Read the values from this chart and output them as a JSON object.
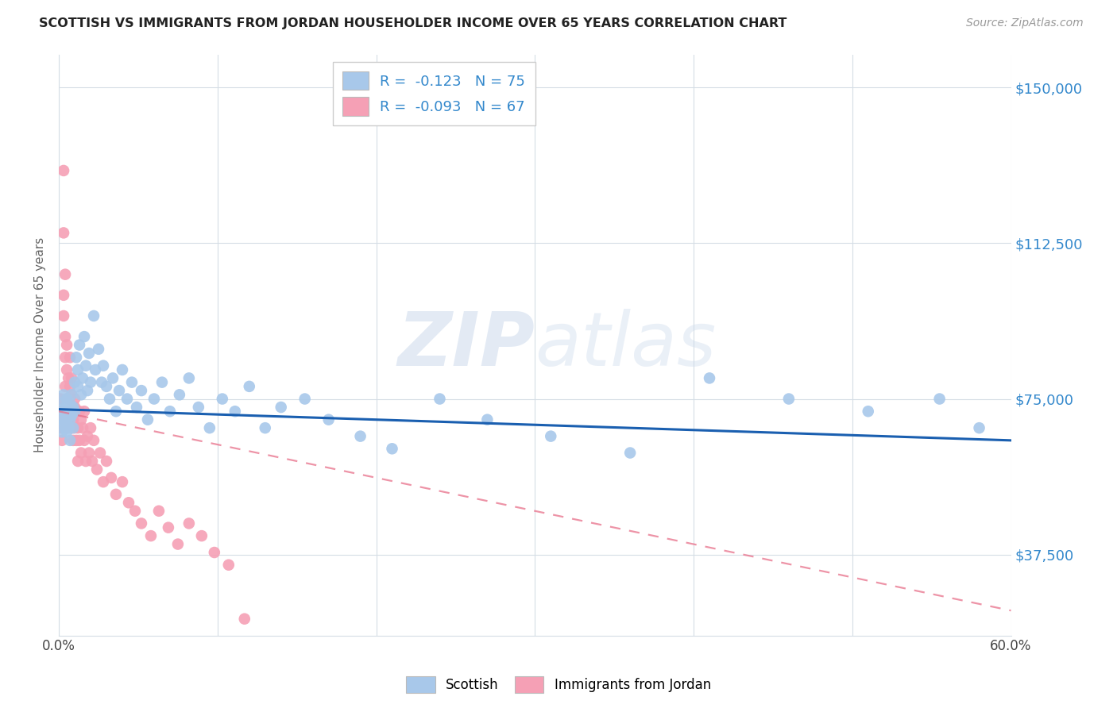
{
  "title": "SCOTTISH VS IMMIGRANTS FROM JORDAN HOUSEHOLDER INCOME OVER 65 YEARS CORRELATION CHART",
  "source": "Source: ZipAtlas.com",
  "ylabel": "Householder Income Over 65 years",
  "ytick_labels": [
    "$37,500",
    "$75,000",
    "$112,500",
    "$150,000"
  ],
  "ytick_values": [
    37500,
    75000,
    112500,
    150000
  ],
  "ymin": 18000,
  "ymax": 158000,
  "xmin": 0.0,
  "xmax": 0.6,
  "legend_blue_r": "-0.123",
  "legend_blue_n": "75",
  "legend_pink_r": "-0.093",
  "legend_pink_n": "67",
  "blue_color": "#a8c8ea",
  "pink_color": "#f5a0b5",
  "blue_line_color": "#1a5fb0",
  "pink_line_color": "#e8708a",
  "grid_color": "#d5dde5",
  "watermark_zip": "ZIP",
  "watermark_atlas": "atlas",
  "scottish_x": [
    0.001,
    0.002,
    0.002,
    0.003,
    0.003,
    0.003,
    0.004,
    0.004,
    0.004,
    0.005,
    0.005,
    0.005,
    0.006,
    0.006,
    0.007,
    0.007,
    0.007,
    0.008,
    0.008,
    0.009,
    0.009,
    0.01,
    0.01,
    0.011,
    0.012,
    0.012,
    0.013,
    0.014,
    0.015,
    0.016,
    0.017,
    0.018,
    0.019,
    0.02,
    0.022,
    0.023,
    0.025,
    0.027,
    0.028,
    0.03,
    0.032,
    0.034,
    0.036,
    0.038,
    0.04,
    0.043,
    0.046,
    0.049,
    0.052,
    0.056,
    0.06,
    0.065,
    0.07,
    0.076,
    0.082,
    0.088,
    0.095,
    0.103,
    0.111,
    0.12,
    0.13,
    0.14,
    0.155,
    0.17,
    0.19,
    0.21,
    0.24,
    0.27,
    0.31,
    0.36,
    0.41,
    0.46,
    0.51,
    0.555,
    0.58
  ],
  "scottish_y": [
    70000,
    67000,
    74000,
    69000,
    72000,
    76000,
    68000,
    73000,
    71000,
    70000,
    75000,
    67000,
    72000,
    68000,
    74000,
    70000,
    65000,
    76000,
    71000,
    73000,
    68000,
    79000,
    72000,
    85000,
    78000,
    82000,
    88000,
    76000,
    80000,
    90000,
    83000,
    77000,
    86000,
    79000,
    95000,
    82000,
    87000,
    79000,
    83000,
    78000,
    75000,
    80000,
    72000,
    77000,
    82000,
    75000,
    79000,
    73000,
    77000,
    70000,
    75000,
    79000,
    72000,
    76000,
    80000,
    73000,
    68000,
    75000,
    72000,
    78000,
    68000,
    73000,
    75000,
    70000,
    66000,
    63000,
    75000,
    70000,
    66000,
    62000,
    80000,
    75000,
    72000,
    75000,
    68000
  ],
  "jordan_x": [
    0.001,
    0.001,
    0.002,
    0.002,
    0.002,
    0.003,
    0.003,
    0.003,
    0.003,
    0.004,
    0.004,
    0.004,
    0.004,
    0.005,
    0.005,
    0.005,
    0.005,
    0.006,
    0.006,
    0.006,
    0.007,
    0.007,
    0.007,
    0.008,
    0.008,
    0.008,
    0.009,
    0.009,
    0.01,
    0.01,
    0.01,
    0.011,
    0.011,
    0.012,
    0.012,
    0.013,
    0.013,
    0.014,
    0.014,
    0.015,
    0.016,
    0.016,
    0.017,
    0.018,
    0.019,
    0.02,
    0.021,
    0.022,
    0.024,
    0.026,
    0.028,
    0.03,
    0.033,
    0.036,
    0.04,
    0.044,
    0.048,
    0.052,
    0.058,
    0.063,
    0.069,
    0.075,
    0.082,
    0.09,
    0.098,
    0.107,
    0.117
  ],
  "jordan_y": [
    70000,
    75000,
    68000,
    72000,
    65000,
    115000,
    130000,
    100000,
    95000,
    85000,
    90000,
    78000,
    105000,
    68000,
    72000,
    82000,
    88000,
    75000,
    80000,
    70000,
    78000,
    85000,
    72000,
    68000,
    76000,
    80000,
    65000,
    70000,
    73000,
    68000,
    75000,
    65000,
    72000,
    68000,
    60000,
    72000,
    65000,
    70000,
    62000,
    68000,
    65000,
    72000,
    60000,
    66000,
    62000,
    68000,
    60000,
    65000,
    58000,
    62000,
    55000,
    60000,
    56000,
    52000,
    55000,
    50000,
    48000,
    45000,
    42000,
    48000,
    44000,
    40000,
    45000,
    42000,
    38000,
    35000,
    22000
  ]
}
